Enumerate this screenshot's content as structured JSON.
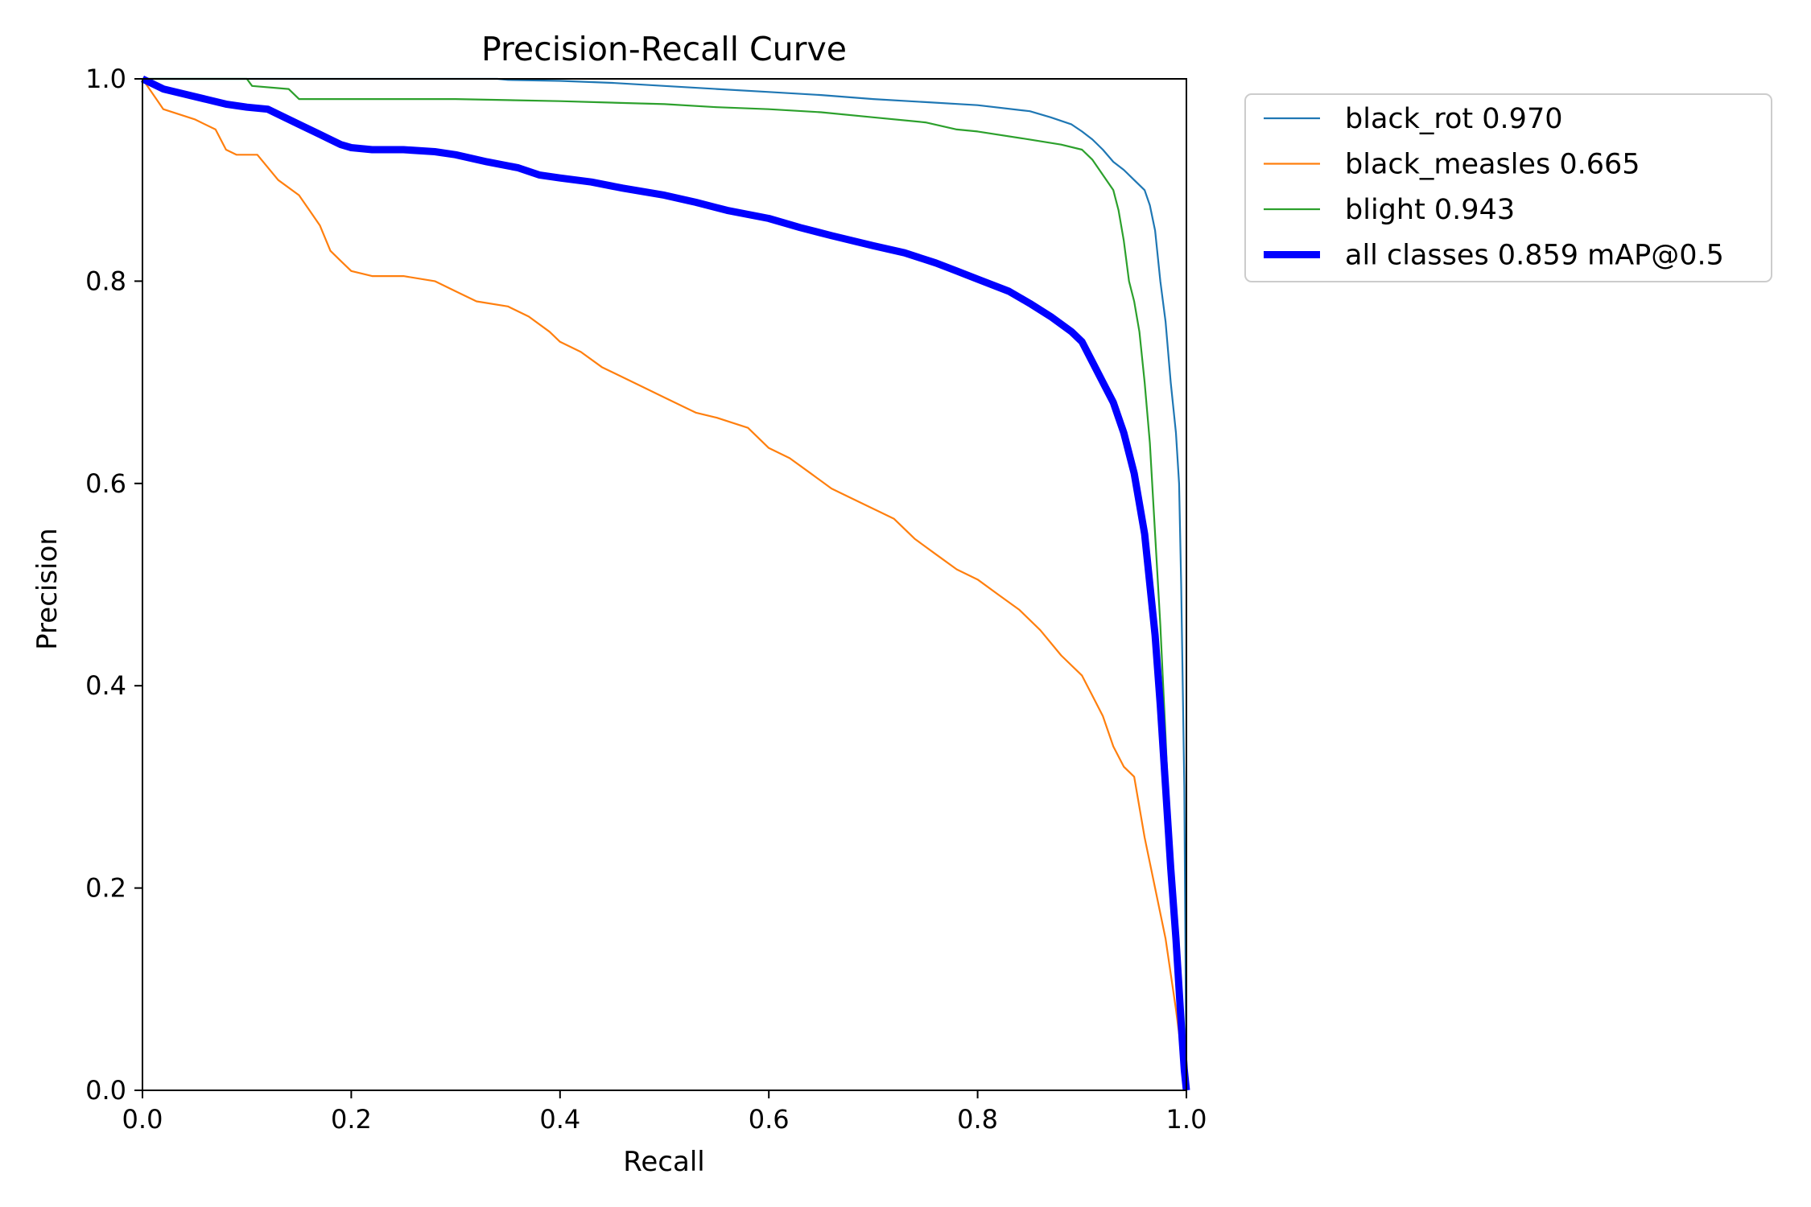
{
  "chart_data": {
    "type": "line",
    "title": "Precision-Recall Curve",
    "xlabel": "Recall",
    "ylabel": "Precision",
    "xlim": [
      0,
      1
    ],
    "ylim": [
      0,
      1
    ],
    "grid": false,
    "legend_position": "outside-top-right",
    "xticks": [
      "0.0",
      "0.2",
      "0.4",
      "0.6",
      "0.8",
      "1.0"
    ],
    "yticks": [
      "0.0",
      "0.2",
      "0.4",
      "0.6",
      "0.8",
      "1.0"
    ],
    "series": [
      {
        "name": "black_rot",
        "label": "black_rot 0.970",
        "ap": 0.97,
        "color": "#1f77b4",
        "emphasis": false,
        "x": [
          0,
          0.1,
          0.2,
          0.34,
          0.35,
          0.4,
          0.45,
          0.5,
          0.55,
          0.6,
          0.65,
          0.7,
          0.75,
          0.8,
          0.85,
          0.87,
          0.89,
          0.9,
          0.91,
          0.92,
          0.93,
          0.94,
          0.95,
          0.96,
          0.965,
          0.97,
          0.975,
          0.98,
          0.985,
          0.99,
          0.993,
          0.995,
          0.998,
          1.0
        ],
        "y": [
          1.0,
          1.0,
          1.0,
          1.0,
          0.999,
          0.998,
          0.996,
          0.993,
          0.99,
          0.987,
          0.984,
          0.98,
          0.977,
          0.974,
          0.968,
          0.962,
          0.955,
          0.948,
          0.94,
          0.93,
          0.918,
          0.91,
          0.9,
          0.89,
          0.875,
          0.85,
          0.8,
          0.76,
          0.7,
          0.65,
          0.6,
          0.5,
          0.3,
          0.0
        ]
      },
      {
        "name": "black_measles",
        "label": "black_measles 0.665",
        "ap": 0.665,
        "color": "#ff7f0e",
        "emphasis": false,
        "x": [
          0,
          0.02,
          0.05,
          0.07,
          0.08,
          0.09,
          0.11,
          0.13,
          0.15,
          0.16,
          0.17,
          0.18,
          0.19,
          0.2,
          0.22,
          0.25,
          0.28,
          0.3,
          0.32,
          0.35,
          0.37,
          0.39,
          0.4,
          0.42,
          0.44,
          0.46,
          0.48,
          0.5,
          0.53,
          0.55,
          0.58,
          0.6,
          0.62,
          0.64,
          0.66,
          0.68,
          0.7,
          0.72,
          0.74,
          0.76,
          0.78,
          0.8,
          0.82,
          0.84,
          0.86,
          0.88,
          0.9,
          0.91,
          0.92,
          0.93,
          0.94,
          0.95,
          0.96,
          0.97,
          0.98,
          0.99,
          1.0
        ],
        "y": [
          1.0,
          0.97,
          0.96,
          0.95,
          0.93,
          0.925,
          0.925,
          0.9,
          0.885,
          0.87,
          0.855,
          0.83,
          0.82,
          0.81,
          0.805,
          0.805,
          0.8,
          0.79,
          0.78,
          0.775,
          0.765,
          0.75,
          0.74,
          0.73,
          0.715,
          0.705,
          0.695,
          0.685,
          0.67,
          0.665,
          0.655,
          0.635,
          0.625,
          0.61,
          0.595,
          0.585,
          0.575,
          0.565,
          0.545,
          0.53,
          0.515,
          0.505,
          0.49,
          0.475,
          0.455,
          0.43,
          0.41,
          0.39,
          0.37,
          0.34,
          0.32,
          0.31,
          0.25,
          0.2,
          0.15,
          0.08,
          0.0
        ]
      },
      {
        "name": "blight",
        "label": "blight 0.943",
        "ap": 0.943,
        "color": "#2ca02c",
        "emphasis": false,
        "x": [
          0,
          0.1,
          0.105,
          0.14,
          0.15,
          0.3,
          0.4,
          0.5,
          0.55,
          0.6,
          0.65,
          0.7,
          0.75,
          0.78,
          0.8,
          0.85,
          0.88,
          0.9,
          0.91,
          0.92,
          0.93,
          0.935,
          0.94,
          0.945,
          0.95,
          0.955,
          0.96,
          0.965,
          0.97,
          0.975,
          0.98,
          0.985,
          0.99,
          0.995,
          1.0
        ],
        "y": [
          1.0,
          1.0,
          0.993,
          0.99,
          0.98,
          0.98,
          0.978,
          0.975,
          0.972,
          0.97,
          0.967,
          0.962,
          0.957,
          0.95,
          0.948,
          0.94,
          0.935,
          0.93,
          0.92,
          0.905,
          0.89,
          0.87,
          0.84,
          0.8,
          0.78,
          0.75,
          0.7,
          0.64,
          0.55,
          0.46,
          0.35,
          0.23,
          0.12,
          0.05,
          0.0
        ]
      },
      {
        "name": "all classes",
        "label": "all classes 0.859 mAP@0.5",
        "ap": 0.859,
        "color": "#0000ff",
        "emphasis": true,
        "x": [
          0,
          0.02,
          0.04,
          0.06,
          0.08,
          0.1,
          0.12,
          0.14,
          0.15,
          0.17,
          0.18,
          0.19,
          0.2,
          0.22,
          0.25,
          0.28,
          0.3,
          0.33,
          0.36,
          0.38,
          0.4,
          0.43,
          0.46,
          0.5,
          0.53,
          0.56,
          0.6,
          0.63,
          0.66,
          0.7,
          0.73,
          0.76,
          0.78,
          0.8,
          0.83,
          0.85,
          0.87,
          0.89,
          0.9,
          0.91,
          0.92,
          0.93,
          0.94,
          0.95,
          0.96,
          0.965,
          0.97,
          0.975,
          0.98,
          0.985,
          0.99,
          0.993,
          0.996,
          0.998,
          1.0
        ],
        "y": [
          1.0,
          0.99,
          0.985,
          0.98,
          0.975,
          0.972,
          0.97,
          0.96,
          0.955,
          0.945,
          0.94,
          0.935,
          0.932,
          0.93,
          0.93,
          0.928,
          0.925,
          0.918,
          0.912,
          0.905,
          0.902,
          0.898,
          0.892,
          0.885,
          0.878,
          0.87,
          0.862,
          0.853,
          0.845,
          0.835,
          0.828,
          0.818,
          0.81,
          0.802,
          0.79,
          0.778,
          0.765,
          0.75,
          0.74,
          0.72,
          0.7,
          0.68,
          0.65,
          0.61,
          0.55,
          0.5,
          0.45,
          0.38,
          0.3,
          0.22,
          0.15,
          0.1,
          0.05,
          0.02,
          0.0
        ]
      }
    ]
  }
}
